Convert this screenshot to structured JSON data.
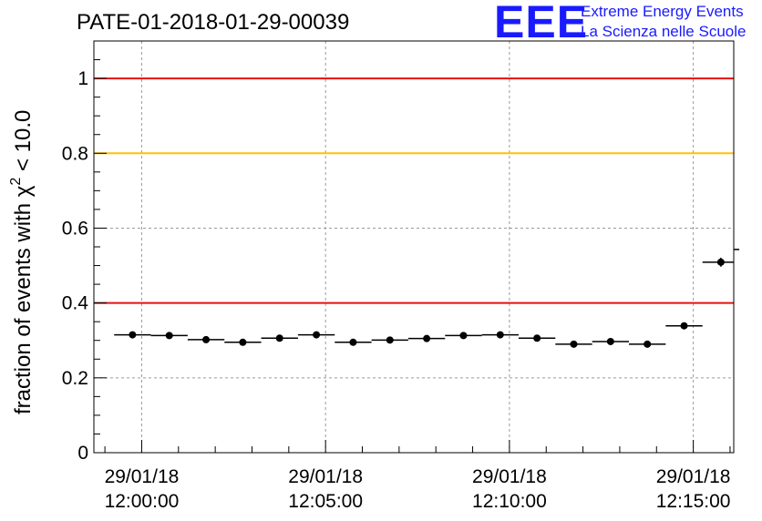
{
  "chart_data": {
    "type": "scatter",
    "title": "PATE-01-2018-01-29-00039",
    "ylabel": {
      "prefix": "fraction of events with ",
      "chi": "χ",
      "sup": "2",
      "suffix": " < 10.0"
    },
    "xlabel": "",
    "ylim": [
      0,
      1.1
    ],
    "y_ticks": [
      {
        "value": 0,
        "label": "0"
      },
      {
        "value": 0.2,
        "label": "0.2"
      },
      {
        "value": 0.4,
        "label": "0.4"
      },
      {
        "value": 0.6,
        "label": "0.6"
      },
      {
        "value": 0.8,
        "label": "0.8"
      },
      {
        "value": 1.0,
        "label": "1"
      }
    ],
    "x_range_minutes": [
      -1.3,
      16.1
    ],
    "bin_width_minutes": 1.0,
    "x_ticks": [
      {
        "minute": 0,
        "date": "29/01/18",
        "time": "12:00:00"
      },
      {
        "minute": 5,
        "date": "29/01/18",
        "time": "12:05:00"
      },
      {
        "minute": 10,
        "date": "29/01/18",
        "time": "12:10:00"
      },
      {
        "minute": 15,
        "date": "29/01/18",
        "time": "12:15:00"
      }
    ],
    "reference_lines": [
      {
        "value": 1.0,
        "color": "#e81010"
      },
      {
        "value": 0.8,
        "color": "#ffc000"
      },
      {
        "value": 0.4,
        "color": "#e81010"
      }
    ],
    "points": [
      {
        "minute": -0.25,
        "value": 0.315,
        "err": 0.006
      },
      {
        "minute": 0.75,
        "value": 0.313,
        "err": 0.006
      },
      {
        "minute": 1.75,
        "value": 0.302,
        "err": 0.006
      },
      {
        "minute": 2.75,
        "value": 0.295,
        "err": 0.006
      },
      {
        "minute": 3.75,
        "value": 0.306,
        "err": 0.006
      },
      {
        "minute": 4.75,
        "value": 0.315,
        "err": 0.006
      },
      {
        "minute": 5.75,
        "value": 0.295,
        "err": 0.006
      },
      {
        "minute": 6.75,
        "value": 0.301,
        "err": 0.006
      },
      {
        "minute": 7.75,
        "value": 0.305,
        "err": 0.006
      },
      {
        "minute": 8.75,
        "value": 0.313,
        "err": 0.006
      },
      {
        "minute": 9.75,
        "value": 0.315,
        "err": 0.006
      },
      {
        "minute": 10.75,
        "value": 0.306,
        "err": 0.006
      },
      {
        "minute": 11.75,
        "value": 0.29,
        "err": 0.006
      },
      {
        "minute": 12.75,
        "value": 0.297,
        "err": 0.006
      },
      {
        "minute": 13.75,
        "value": 0.29,
        "err": 0.006
      },
      {
        "minute": 14.75,
        "value": 0.339,
        "err": 0.007
      },
      {
        "minute": 15.75,
        "value": 0.509,
        "err": 0.012
      },
      {
        "minute": 16.75,
        "value": 0.543,
        "err": 0.014
      }
    ],
    "grid": true,
    "colors": {
      "marker": "#000000",
      "grid": "#9a9a9a",
      "logo": "#1a1aff"
    }
  },
  "logo": {
    "mark": "EEE",
    "line1": "Extreme Energy Events",
    "line2": "La Scienza nelle Scuole"
  }
}
